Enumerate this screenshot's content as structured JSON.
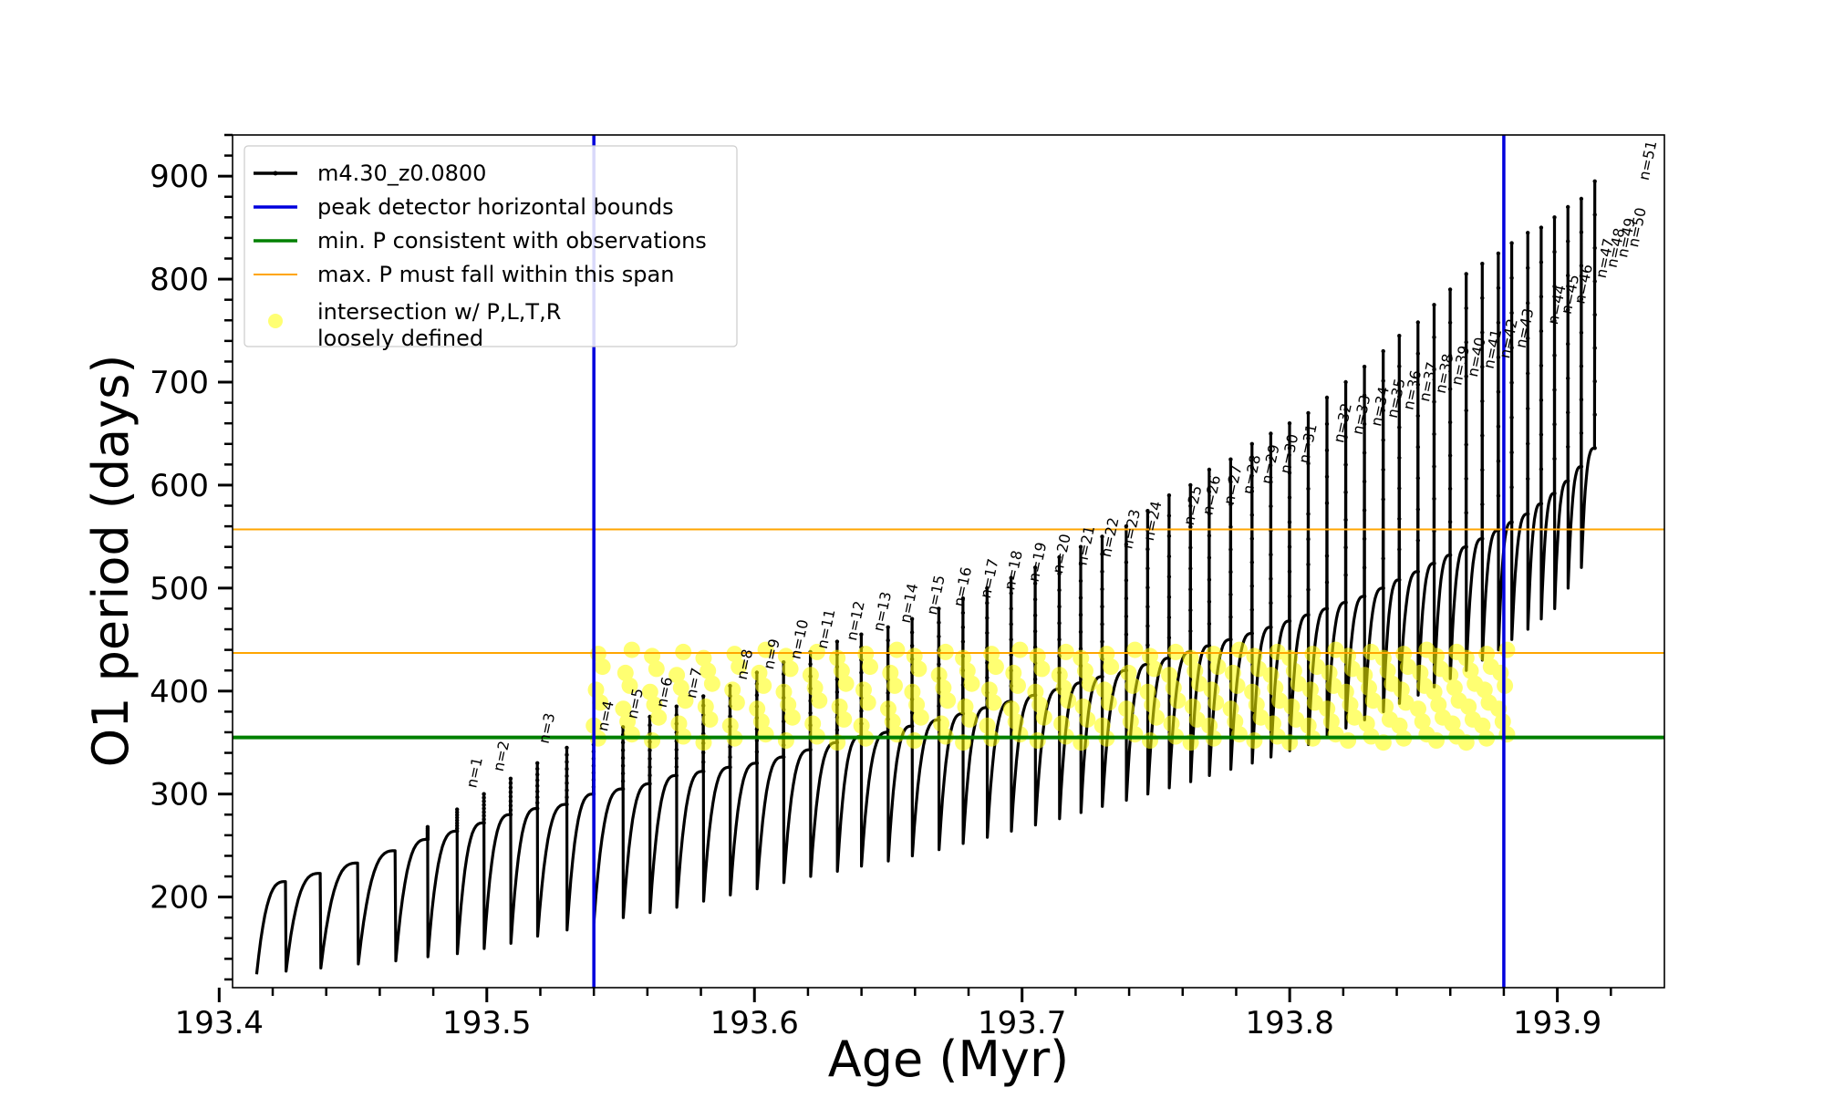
{
  "chart_data": {
    "type": "line",
    "xlabel": "Age (Myr)",
    "ylabel": "O1 period (days)",
    "xlim": [
      193.405,
      193.94
    ],
    "ylim": [
      112,
      940
    ],
    "x_ticks": [
      193.4,
      193.5,
      193.6,
      193.7,
      193.8,
      193.9
    ],
    "x_tick_labels": [
      "193.4",
      "193.5",
      "193.6",
      "193.7",
      "193.8",
      "193.9"
    ],
    "y_ticks": [
      200,
      300,
      400,
      500,
      600,
      700,
      800,
      900
    ],
    "y_tick_labels": [
      "200",
      "300",
      "400",
      "500",
      "600",
      "700",
      "800",
      "900"
    ],
    "grid": false,
    "legend_position": "top-left",
    "legend": [
      {
        "label": "m4.30_z0.0800",
        "style": "line-marker",
        "color": "#000000"
      },
      {
        "label": "peak detector horizontal bounds",
        "style": "line",
        "color": "#0000dd"
      },
      {
        "label": "min. P consistent with observations",
        "style": "line",
        "color": "#008000"
      },
      {
        "label": "max. P must fall within this span",
        "style": "line",
        "color": "#ffa500"
      },
      {
        "label": "intersection w/ P,L,T,R\nloosely defined",
        "style": "dot",
        "color": "#ffff00"
      }
    ],
    "series": [
      {
        "name": "m4.30_z0.0800",
        "color": "#000000",
        "description_points": {
          "cycle_start_age": [
            193.414,
            193.425,
            193.438,
            193.452,
            193.466,
            193.478,
            193.489,
            193.499,
            193.509,
            193.519,
            193.53,
            193.54,
            193.551,
            193.561,
            193.571,
            193.581,
            193.591,
            193.601,
            193.611,
            193.621,
            193.631,
            193.64,
            193.65,
            193.659,
            193.669,
            193.678,
            193.687,
            193.696,
            193.705,
            193.714,
            193.722,
            193.73,
            193.739,
            193.747,
            193.755,
            193.763,
            193.77,
            193.778,
            193.786,
            193.793,
            193.8,
            193.807,
            193.814,
            193.821,
            193.828,
            193.835,
            193.841,
            193.848,
            193.854,
            193.86,
            193.866,
            193.872,
            193.878,
            193.883,
            193.889,
            193.894,
            193.899,
            193.904,
            193.909
          ],
          "cycle_start_period": [
            125,
            128,
            131,
            135,
            138,
            142,
            145,
            150,
            155,
            162,
            168,
            175,
            180,
            185,
            190,
            196,
            202,
            208,
            214,
            220,
            225,
            230,
            235,
            240,
            246,
            252,
            258,
            264,
            270,
            276,
            282,
            288,
            294,
            300,
            306,
            312,
            318,
            324,
            330,
            336,
            342,
            348,
            356,
            364,
            372,
            380,
            388,
            396,
            404,
            412,
            420,
            430,
            440,
            450,
            460,
            470,
            480,
            500,
            520
          ],
          "cycle_top_period": [
            215,
            223,
            233,
            245,
            256,
            264,
            272,
            280,
            286,
            290,
            300,
            305,
            310,
            318,
            322,
            326,
            330,
            336,
            343,
            350,
            356,
            360,
            366,
            372,
            378,
            384,
            390,
            396,
            402,
            408,
            414,
            420,
            426,
            432,
            438,
            444,
            450,
            456,
            462,
            468,
            474,
            480,
            486,
            492,
            500,
            508,
            516,
            524,
            532,
            540,
            548,
            556,
            564,
            572,
            582,
            592,
            604,
            618,
            636
          ],
          "spike_top_period": [
            null,
            null,
            null,
            null,
            268,
            285,
            300,
            315,
            330,
            345,
            355,
            365,
            375,
            385,
            395,
            405,
            418,
            428,
            438,
            448,
            455,
            462,
            470,
            480,
            490,
            500,
            510,
            520,
            530,
            540,
            550,
            560,
            575,
            590,
            600,
            615,
            625,
            640,
            650,
            660,
            670,
            685,
            700,
            715,
            730,
            745,
            758,
            775,
            790,
            805,
            815,
            825,
            835,
            845,
            850,
            860,
            870,
            878,
            895
          ]
        }
      }
    ],
    "peak_labels": [
      {
        "label": "n=1",
        "x": 193.496,
        "y": 300
      },
      {
        "label": "n=2",
        "x": 193.506,
        "y": 316
      },
      {
        "label": "n=3",
        "x": 193.523,
        "y": 343
      },
      {
        "label": "n=4",
        "x": 193.545,
        "y": 355
      },
      {
        "label": "n=5",
        "x": 193.556,
        "y": 367
      },
      {
        "label": "n=6",
        "x": 193.567,
        "y": 378
      },
      {
        "label": "n=7",
        "x": 193.578,
        "y": 387
      },
      {
        "label": "n=8",
        "x": 193.597,
        "y": 405
      },
      {
        "label": "n=9",
        "x": 193.607,
        "y": 415
      },
      {
        "label": "n=10",
        "x": 193.617,
        "y": 425
      },
      {
        "label": "n=11",
        "x": 193.627,
        "y": 435
      },
      {
        "label": "n=12",
        "x": 193.638,
        "y": 443
      },
      {
        "label": "n=13",
        "x": 193.648,
        "y": 452
      },
      {
        "label": "n=14",
        "x": 193.658,
        "y": 460
      },
      {
        "label": "n=15",
        "x": 193.668,
        "y": 468
      },
      {
        "label": "n=16",
        "x": 193.678,
        "y": 476
      },
      {
        "label": "n=17",
        "x": 193.688,
        "y": 484
      },
      {
        "label": "n=18",
        "x": 193.697,
        "y": 492
      },
      {
        "label": "n=19",
        "x": 193.706,
        "y": 500
      },
      {
        "label": "n=20",
        "x": 193.715,
        "y": 508
      },
      {
        "label": "n=21",
        "x": 193.724,
        "y": 516
      },
      {
        "label": "n=22",
        "x": 193.733,
        "y": 524
      },
      {
        "label": "n=23",
        "x": 193.741,
        "y": 532
      },
      {
        "label": "n=24",
        "x": 193.749,
        "y": 540
      },
      {
        "label": "n=25",
        "x": 193.764,
        "y": 555
      },
      {
        "label": "n=26",
        "x": 193.771,
        "y": 565
      },
      {
        "label": "n=27",
        "x": 193.779,
        "y": 575
      },
      {
        "label": "n=28",
        "x": 193.786,
        "y": 585
      },
      {
        "label": "n=29",
        "x": 193.793,
        "y": 595
      },
      {
        "label": "n=30",
        "x": 193.8,
        "y": 605
      },
      {
        "label": "n=31",
        "x": 193.807,
        "y": 615
      },
      {
        "label": "n=32",
        "x": 193.82,
        "y": 635
      },
      {
        "label": "n=33",
        "x": 193.827,
        "y": 643
      },
      {
        "label": "n=34",
        "x": 193.834,
        "y": 651
      },
      {
        "label": "n=35",
        "x": 193.84,
        "y": 659
      },
      {
        "label": "n=36",
        "x": 193.846,
        "y": 667
      },
      {
        "label": "n=37",
        "x": 193.852,
        "y": 675
      },
      {
        "label": "n=38",
        "x": 193.858,
        "y": 683
      },
      {
        "label": "n=39",
        "x": 193.864,
        "y": 691
      },
      {
        "label": "n=40",
        "x": 193.87,
        "y": 699
      },
      {
        "label": "n=41",
        "x": 193.876,
        "y": 707
      },
      {
        "label": "n=42",
        "x": 193.882,
        "y": 717
      },
      {
        "label": "n=43",
        "x": 193.888,
        "y": 727
      },
      {
        "label": "n=44",
        "x": 193.9,
        "y": 750
      },
      {
        "label": "n=45",
        "x": 193.905,
        "y": 760
      },
      {
        "label": "n=46",
        "x": 193.91,
        "y": 770
      },
      {
        "label": "n=47",
        "x": 193.918,
        "y": 795
      },
      {
        "label": "n=48",
        "x": 193.922,
        "y": 805
      },
      {
        "label": "n=49",
        "x": 193.926,
        "y": 815
      },
      {
        "label": "n=50",
        "x": 193.93,
        "y": 825
      },
      {
        "label": "n=51",
        "x": 193.934,
        "y": 890
      }
    ],
    "vertical_lines": [
      {
        "x": 193.54,
        "color": "#0000dd",
        "legend": "peak detector horizontal bounds"
      },
      {
        "x": 193.88,
        "color": "#0000dd",
        "legend": "peak detector horizontal bounds"
      }
    ],
    "horizontal_lines": [
      {
        "y": 355,
        "color": "#008000",
        "legend": "min. P consistent with observations"
      },
      {
        "y": 437,
        "color": "#ffa500",
        "legend": "max. P must fall within this span"
      },
      {
        "y": 557,
        "color": "#ffa500",
        "legend": "max. P must fall within this span"
      }
    ],
    "intersection_region": {
      "color": "#ffff00",
      "x_range": [
        193.54,
        193.88
      ],
      "y_range": [
        355,
        437
      ]
    }
  }
}
